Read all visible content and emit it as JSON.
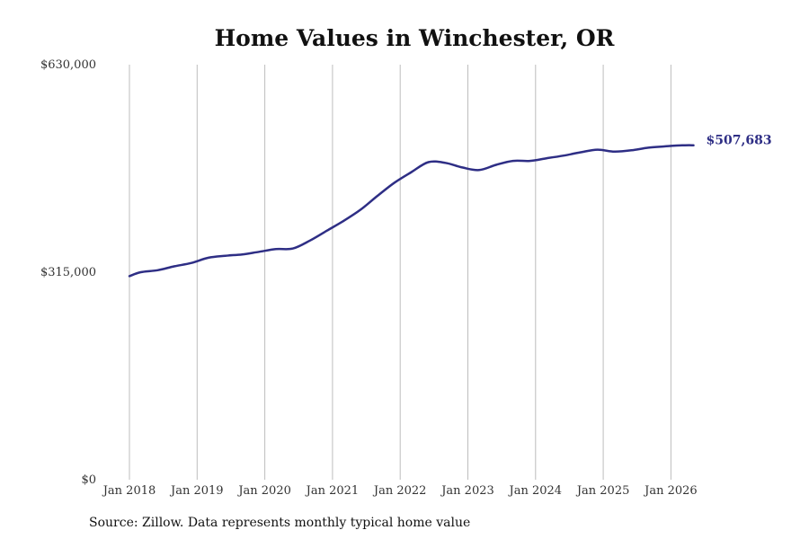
{
  "chart_data": {
    "type": "line",
    "title": "Home Values in Winchester, OR",
    "xlabel": "",
    "ylabel": "",
    "ylim": [
      0,
      630000
    ],
    "y_ticks": [
      "$0",
      "$315,000",
      "$630,000"
    ],
    "y_tick_values": [
      0,
      315000,
      630000
    ],
    "x_tick_labels": [
      "Jan 2018",
      "Jan 2019",
      "Jan 2020",
      "Jan 2021",
      "Jan 2022",
      "Jan 2023",
      "Jan 2024",
      "Jan 2025",
      "Jan 2026"
    ],
    "grid": "vertical",
    "line_color": "#2e2e85",
    "end_label": "$507,683",
    "series": [
      {
        "x": [
          "2018-01",
          "2018-03",
          "2018-06",
          "2018-09",
          "2018-12",
          "2019-03",
          "2019-06",
          "2019-09",
          "2019-12",
          "2020-03",
          "2020-06",
          "2020-09",
          "2020-12",
          "2021-03",
          "2021-06",
          "2021-09",
          "2021-12",
          "2022-03",
          "2022-06",
          "2022-09",
          "2022-12",
          "2023-03",
          "2023-06",
          "2023-09",
          "2023-12",
          "2024-03",
          "2024-06",
          "2024-09",
          "2024-12",
          "2025-03",
          "2025-06",
          "2025-09",
          "2025-12",
          "2026-03",
          "2026-05"
        ],
        "values": [
          309000,
          315000,
          318000,
          324000,
          329000,
          337000,
          340000,
          342000,
          346000,
          350000,
          351000,
          363000,
          378000,
          393000,
          410000,
          431000,
          451000,
          467000,
          482000,
          481000,
          474000,
          470000,
          478000,
          484000,
          484000,
          488000,
          492000,
          497000,
          501000,
          498000,
          500000,
          504000,
          506000,
          507500,
          507683
        ]
      }
    ]
  },
  "source_text": "Source: Zillow. Data represents monthly typical home value"
}
